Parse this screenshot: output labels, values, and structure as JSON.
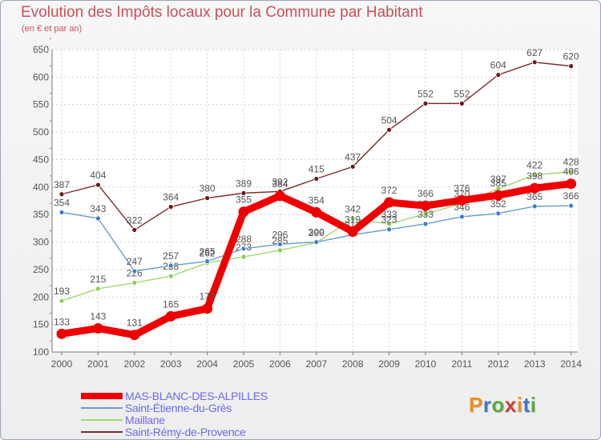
{
  "header": {
    "title": "Evolution des Impôts locaux pour la Commune par Habitant",
    "subtitle": "(en € et par an)"
  },
  "logo": {
    "text": "Proxiti",
    "colors": [
      "#e8901e",
      "#3c78c8",
      "#5aaa3c",
      "#d23c3c",
      "#e8901e",
      "#3c78c8",
      "#5aaa3c"
    ]
  },
  "colors": {
    "title": "#c8505a",
    "axis": "#7a7a7a",
    "grid": "#d0d0d0",
    "tick_mark": "#d84a4a",
    "label": "#555555"
  },
  "chart_data": {
    "type": "line",
    "title": "Evolution des Impôts locaux pour la Commune par Habitant",
    "subtitle": "(en € et par an)",
    "x": [
      "2000",
      "2001",
      "2002",
      "2003",
      "2004",
      "2005",
      "2006",
      "2007",
      "2008",
      "2009",
      "2010",
      "2011",
      "2012",
      "2013",
      "2014"
    ],
    "yticks": [
      100,
      150,
      200,
      250,
      300,
      350,
      400,
      450,
      500,
      550,
      600,
      650
    ],
    "ylim": [
      100,
      650
    ],
    "grid": true,
    "legend_position": "bottom-left",
    "series": [
      {
        "name": "Saint-Rémy-de-Provence",
        "color": "#7a2a2a",
        "marker": "#6a1a1a",
        "width": 1.4,
        "values": [
          387,
          404,
          322,
          364,
          380,
          389,
          392,
          415,
          437,
          504,
          552,
          552,
          604,
          627,
          620
        ]
      },
      {
        "name": "Maillane",
        "color": "#9ed870",
        "marker": "#8ccc5a",
        "width": 1.4,
        "values": [
          193,
          215,
          226,
          238,
          262,
          273,
          285,
          299,
          342,
          333,
          351,
          370,
          397,
          422,
          428
        ]
      },
      {
        "name": "Saint-Étienne-du-Grès",
        "color": "#6a9ccc",
        "marker": "#3c80c8",
        "width": 1.4,
        "values": [
          354,
          343,
          247,
          257,
          265,
          288,
          296,
          300,
          313,
          323,
          333,
          346,
          352,
          365,
          366
        ]
      },
      {
        "name": "MAS-BLANC-DES-ALPILLES",
        "color": "#ee0000",
        "marker": "#ee0000",
        "width": 9,
        "values": [
          133,
          143,
          131,
          165,
          179,
          355,
          384,
          354,
          319,
          372,
          366,
          376,
          385,
          398,
          406
        ]
      }
    ],
    "legend": [
      {
        "label": "MAS-BLANC-DES-ALPILLES",
        "color": "#ee0000",
        "text_color": "#6a6aee",
        "thick": true
      },
      {
        "label": "Saint-Étienne-du-Grès",
        "color": "#6a9ccc",
        "text_color": "#6a6aee",
        "thick": false
      },
      {
        "label": "Maillane",
        "color": "#9ed870",
        "text_color": "#6a6aee",
        "thick": false
      },
      {
        "label": "Saint-Rémy-de-Provence",
        "color": "#7a2a2a",
        "text_color": "#6a6aee",
        "thick": false
      }
    ]
  }
}
